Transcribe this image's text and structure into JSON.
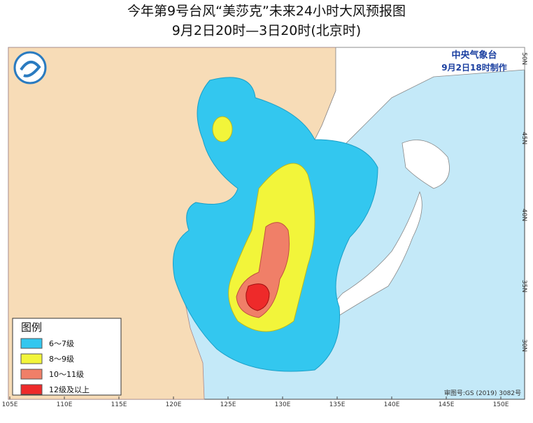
{
  "title": "今年第9号台风“美莎克”未来24小时大风预报图",
  "subtitle": "9月2日20时—3日20时(北京时)",
  "agency": "中央气象台",
  "issued": "9月2日18时制作",
  "legend": {
    "title": "图例",
    "items": [
      {
        "label": "6～7级",
        "color": "#33c7ef"
      },
      {
        "label": "8～9级",
        "color": "#f2f53a"
      },
      {
        "label": "10～11级",
        "color": "#f07f68"
      },
      {
        "label": "12级及以上",
        "color": "#ee2a2a"
      }
    ]
  },
  "longitude_labels": [
    "105E",
    "110E",
    "115E",
    "120E",
    "125E",
    "130E",
    "135E",
    "140E",
    "145E",
    "150E"
  ],
  "latitude_labels": [
    "50N",
    "45N",
    "40N",
    "35N",
    "30N"
  ],
  "map_code": "审图号:GS (2019) 3082号"
}
